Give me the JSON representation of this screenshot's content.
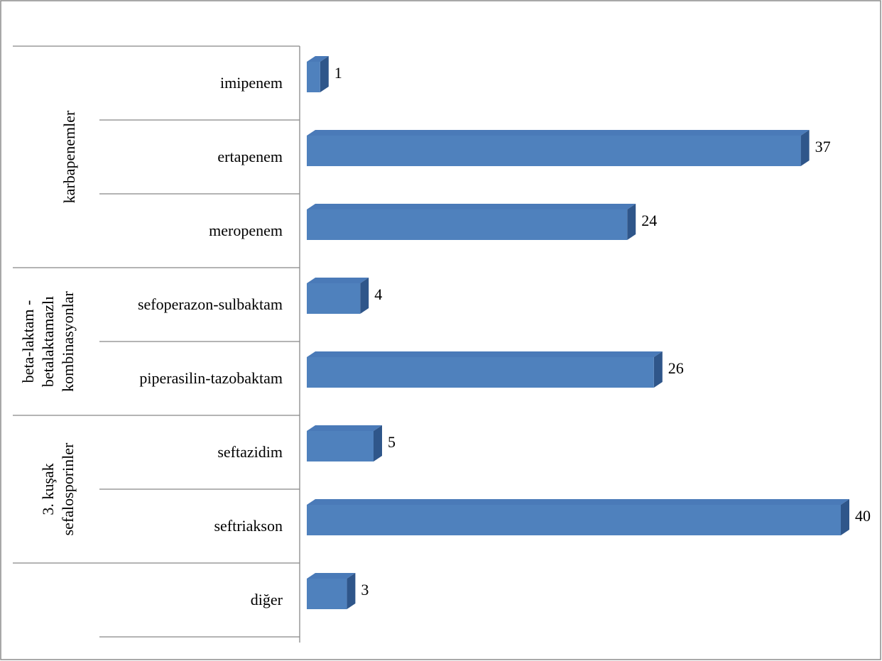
{
  "chart_data": {
    "type": "bar",
    "orientation": "horizontal",
    "color": "#4f81bd",
    "groups": [
      {
        "name": [
          "karbapenemler"
        ],
        "categories": [
          "imipenem",
          "ertapenem",
          "meropenem"
        ],
        "values": [
          1,
          37,
          24
        ]
      },
      {
        "name": [
          "beta-laktam -",
          "betalaktamazlı",
          "kombinasyonlar"
        ],
        "categories": [
          "sefoperazon-sulbaktam",
          "piperasilin-tazobaktam"
        ],
        "values": [
          4,
          26
        ]
      },
      {
        "name": [
          "3. kuşak",
          "sefalosporinler"
        ],
        "categories": [
          "seftazidim",
          "seftriakson"
        ],
        "values": [
          5,
          40
        ]
      },
      {
        "name": null,
        "categories": [
          "diğer"
        ],
        "values": [
          3
        ]
      }
    ]
  }
}
